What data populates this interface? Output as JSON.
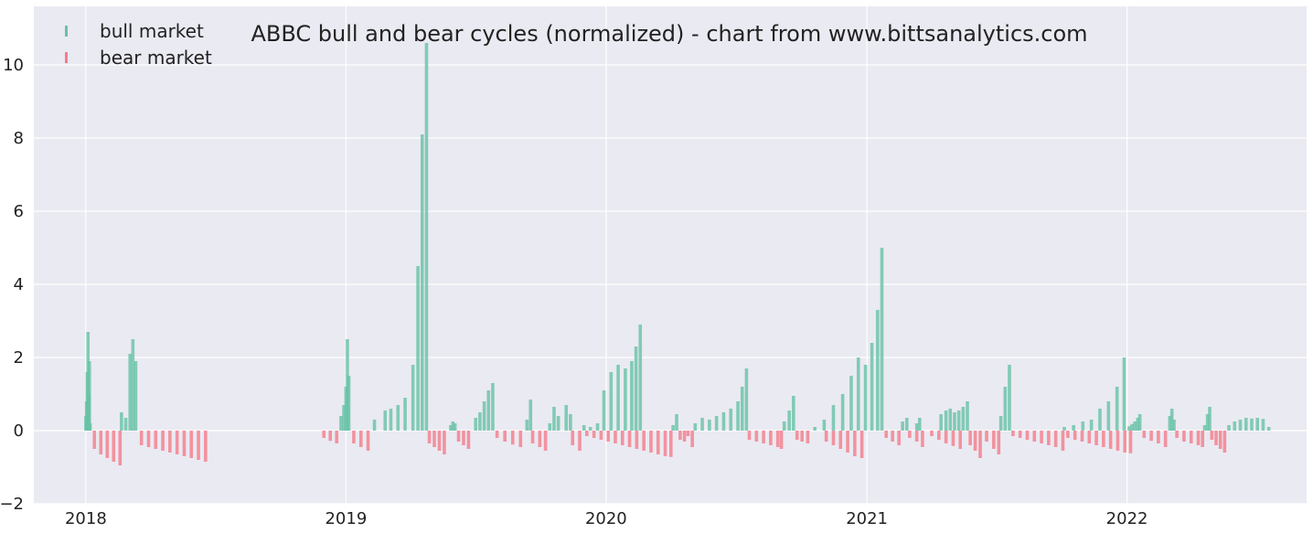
{
  "chart_data": {
    "type": "bar",
    "title": "ABBC bull and bear cycles (normalized)  - chart from www.bittsanalytics.com",
    "xlabel": "",
    "ylabel": "",
    "xlim": [
      "2017-10-20",
      "2022-09-10"
    ],
    "ylim": [
      -2,
      11.6
    ],
    "x_ticks": [
      {
        "date": "2018-01-01",
        "label": "2018"
      },
      {
        "date": "2019-01-01",
        "label": "2019"
      },
      {
        "date": "2020-01-01",
        "label": "2020"
      },
      {
        "date": "2021-01-01",
        "label": "2021"
      },
      {
        "date": "2022-01-01",
        "label": "2022"
      }
    ],
    "y_ticks": [
      {
        "value": -2,
        "label": "−2"
      },
      {
        "value": 0,
        "label": "0"
      },
      {
        "value": 2,
        "label": "2"
      },
      {
        "value": 4,
        "label": "4"
      },
      {
        "value": 6,
        "label": "6"
      },
      {
        "value": 8,
        "label": "8"
      },
      {
        "value": 10,
        "label": "10"
      }
    ],
    "grid": true,
    "legend_position": "top-left",
    "colors": {
      "background": "#eaeaf2",
      "grid": "#ffffff",
      "bull": "#66c2a5",
      "bear": "#f47c89"
    },
    "series": [
      {
        "name": "bull market",
        "color": "#66c2a5",
        "x": [
          "2018-01-01",
          "2018-01-02",
          "2018-01-03",
          "2018-01-04",
          "2018-01-05",
          "2018-01-06",
          "2018-01-07",
          "2018-02-20",
          "2018-02-26",
          "2018-03-04",
          "2018-03-08",
          "2018-03-12",
          "2018-12-25",
          "2018-12-29",
          "2019-01-01",
          "2019-01-03",
          "2019-01-05",
          "2019-02-10",
          "2019-02-25",
          "2019-03-05",
          "2019-03-15",
          "2019-03-25",
          "2019-04-05",
          "2019-04-12",
          "2019-04-18",
          "2019-04-24",
          "2019-05-28",
          "2019-05-31",
          "2019-06-03",
          "2019-07-02",
          "2019-07-08",
          "2019-07-14",
          "2019-07-20",
          "2019-07-26",
          "2019-09-12",
          "2019-09-17",
          "2019-10-14",
          "2019-10-20",
          "2019-10-26",
          "2019-11-06",
          "2019-11-12",
          "2019-12-01",
          "2019-12-10",
          "2019-12-20",
          "2019-12-29",
          "2020-01-08",
          "2020-01-18",
          "2020-01-28",
          "2020-02-06",
          "2020-02-12",
          "2020-02-18",
          "2020-04-04",
          "2020-04-09",
          "2020-05-05",
          "2020-05-15",
          "2020-05-25",
          "2020-06-04",
          "2020-06-14",
          "2020-06-24",
          "2020-07-04",
          "2020-07-10",
          "2020-07-16",
          "2020-09-07",
          "2020-09-14",
          "2020-09-20",
          "2020-10-20",
          "2020-11-02",
          "2020-11-15",
          "2020-11-28",
          "2020-12-10",
          "2020-12-20",
          "2020-12-30",
          "2021-01-08",
          "2021-01-16",
          "2021-01-22",
          "2021-02-20",
          "2021-02-26",
          "2021-03-12",
          "2021-03-16",
          "2021-04-15",
          "2021-04-22",
          "2021-04-28",
          "2021-05-04",
          "2021-05-10",
          "2021-05-16",
          "2021-05-22",
          "2021-07-08",
          "2021-07-14",
          "2021-07-20",
          "2021-10-05",
          "2021-10-18",
          "2021-10-31",
          "2021-11-12",
          "2021-11-24",
          "2021-12-06",
          "2021-12-18",
          "2021-12-28",
          "2022-01-04",
          "2022-01-08",
          "2022-01-12",
          "2022-01-16",
          "2022-01-19",
          "2022-03-02",
          "2022-03-05",
          "2022-03-08",
          "2022-04-20",
          "2022-04-24",
          "2022-04-27",
          "2022-05-24",
          "2022-06-01",
          "2022-06-09",
          "2022-06-17",
          "2022-06-25",
          "2022-07-03",
          "2022-07-11",
          "2022-07-19"
        ],
        "values": [
          0.4,
          0.8,
          1.6,
          2.7,
          1.0,
          1.9,
          0.2,
          0.5,
          0.35,
          2.1,
          2.5,
          1.9,
          0.4,
          0.7,
          1.2,
          2.5,
          1.5,
          0.3,
          0.55,
          0.6,
          0.7,
          0.9,
          1.8,
          4.5,
          8.1,
          10.6,
          0.15,
          0.25,
          0.2,
          0.35,
          0.5,
          0.8,
          1.1,
          1.3,
          0.3,
          0.85,
          0.2,
          0.65,
          0.4,
          0.7,
          0.45,
          0.15,
          0.1,
          0.2,
          1.1,
          1.6,
          1.8,
          1.7,
          1.9,
          2.3,
          2.9,
          0.15,
          0.45,
          0.2,
          0.35,
          0.3,
          0.4,
          0.5,
          0.6,
          0.8,
          1.2,
          1.7,
          0.25,
          0.55,
          0.95,
          0.1,
          0.3,
          0.7,
          1.0,
          1.5,
          2.0,
          1.8,
          2.4,
          3.3,
          5.0,
          0.25,
          0.35,
          0.2,
          0.35,
          0.45,
          0.55,
          0.6,
          0.5,
          0.55,
          0.65,
          0.8,
          0.4,
          1.2,
          1.8,
          0.1,
          0.15,
          0.25,
          0.3,
          0.6,
          0.8,
          1.2,
          2.0,
          0.12,
          0.18,
          0.25,
          0.35,
          0.45,
          0.4,
          0.6,
          0.3,
          0.15,
          0.45,
          0.65,
          0.15,
          0.25,
          0.3,
          0.35,
          0.33,
          0.35,
          0.32,
          0.1
        ]
      },
      {
        "name": "bear market",
        "color": "#f47c89",
        "x": [
          "2018-01-13",
          "2018-01-22",
          "2018-01-31",
          "2018-02-09",
          "2018-02-18",
          "2018-03-20",
          "2018-03-30",
          "2018-04-09",
          "2018-04-19",
          "2018-04-29",
          "2018-05-09",
          "2018-05-19",
          "2018-05-29",
          "2018-06-08",
          "2018-06-18",
          "2018-12-01",
          "2018-12-10",
          "2018-12-19",
          "2019-01-12",
          "2019-01-22",
          "2019-02-01",
          "2019-04-28",
          "2019-05-05",
          "2019-05-12",
          "2019-05-19",
          "2019-06-08",
          "2019-06-15",
          "2019-06-22",
          "2019-08-01",
          "2019-08-12",
          "2019-08-23",
          "2019-09-03",
          "2019-09-20",
          "2019-09-30",
          "2019-10-08",
          "2019-11-15",
          "2019-11-25",
          "2019-12-05",
          "2019-12-15",
          "2019-12-25",
          "2020-01-04",
          "2020-01-14",
          "2020-01-24",
          "2020-02-03",
          "2020-02-13",
          "2020-02-23",
          "2020-03-04",
          "2020-03-14",
          "2020-03-24",
          "2020-04-01",
          "2020-04-14",
          "2020-04-20",
          "2020-04-25",
          "2020-05-01",
          "2020-07-20",
          "2020-07-30",
          "2020-08-09",
          "2020-08-19",
          "2020-08-29",
          "2020-09-03",
          "2020-09-25",
          "2020-10-02",
          "2020-10-10",
          "2020-11-05",
          "2020-11-15",
          "2020-11-25",
          "2020-12-05",
          "2020-12-15",
          "2020-12-25",
          "2021-01-28",
          "2021-02-06",
          "2021-02-15",
          "2021-03-02",
          "2021-03-12",
          "2021-03-20",
          "2021-04-02",
          "2021-04-12",
          "2021-04-22",
          "2021-05-02",
          "2021-05-12",
          "2021-05-26",
          "2021-06-02",
          "2021-06-09",
          "2021-06-18",
          "2021-06-28",
          "2021-07-05",
          "2021-07-25",
          "2021-08-04",
          "2021-08-14",
          "2021-08-24",
          "2021-09-03",
          "2021-09-13",
          "2021-09-23",
          "2021-10-03",
          "2021-10-10",
          "2021-10-20",
          "2021-10-30",
          "2021-11-09",
          "2021-11-19",
          "2021-11-29",
          "2021-12-09",
          "2021-12-19",
          "2021-12-29",
          "2022-01-06",
          "2022-01-25",
          "2022-02-04",
          "2022-02-14",
          "2022-02-24",
          "2022-03-12",
          "2022-03-22",
          "2022-04-01",
          "2022-04-11",
          "2022-04-17",
          "2022-04-30",
          "2022-05-06",
          "2022-05-12",
          "2022-05-18"
        ],
        "values": [
          -0.5,
          -0.65,
          -0.75,
          -0.85,
          -0.95,
          -0.4,
          -0.45,
          -0.5,
          -0.55,
          -0.6,
          -0.65,
          -0.7,
          -0.75,
          -0.8,
          -0.85,
          -0.2,
          -0.28,
          -0.35,
          -0.35,
          -0.45,
          -0.55,
          -0.35,
          -0.45,
          -0.55,
          -0.65,
          -0.3,
          -0.4,
          -0.5,
          -0.2,
          -0.3,
          -0.38,
          -0.45,
          -0.35,
          -0.45,
          -0.55,
          -0.4,
          -0.55,
          -0.15,
          -0.2,
          -0.25,
          -0.3,
          -0.35,
          -0.4,
          -0.45,
          -0.5,
          -0.55,
          -0.6,
          -0.65,
          -0.7,
          -0.72,
          -0.25,
          -0.3,
          -0.15,
          -0.45,
          -0.25,
          -0.3,
          -0.35,
          -0.4,
          -0.45,
          -0.5,
          -0.25,
          -0.3,
          -0.35,
          -0.3,
          -0.4,
          -0.5,
          -0.6,
          -0.7,
          -0.75,
          -0.2,
          -0.3,
          -0.4,
          -0.2,
          -0.3,
          -0.45,
          -0.15,
          -0.25,
          -0.35,
          -0.42,
          -0.5,
          -0.4,
          -0.55,
          -0.75,
          -0.3,
          -0.5,
          -0.65,
          -0.15,
          -0.2,
          -0.25,
          -0.3,
          -0.35,
          -0.4,
          -0.45,
          -0.55,
          -0.2,
          -0.25,
          -0.3,
          -0.35,
          -0.4,
          -0.45,
          -0.5,
          -0.55,
          -0.6,
          -0.62,
          -0.2,
          -0.28,
          -0.35,
          -0.45,
          -0.2,
          -0.3,
          -0.35,
          -0.4,
          -0.45,
          -0.25,
          -0.4,
          -0.5,
          -0.6
        ]
      }
    ]
  }
}
